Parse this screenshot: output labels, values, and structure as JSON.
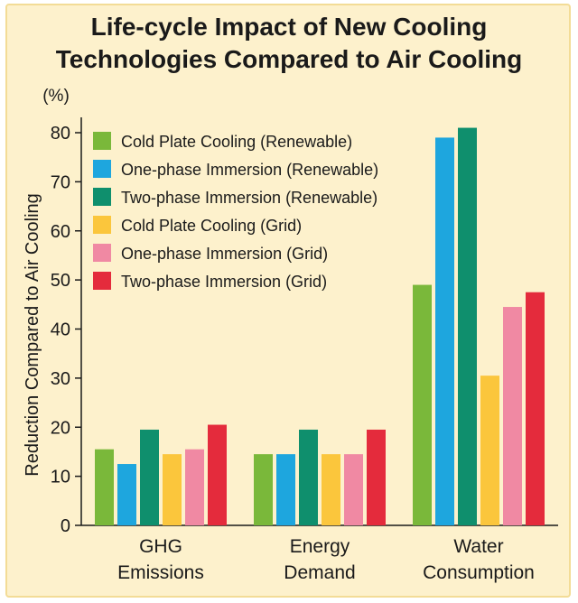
{
  "chart_data": {
    "type": "bar",
    "title": [
      "Life-cycle Impact of New Cooling",
      "Technologies Compared to Air Cooling"
    ],
    "ylabel": "Reduction Compared to Air Cooling",
    "yunit": "(%)",
    "ylim": [
      0,
      80
    ],
    "yticks": [
      0,
      10,
      20,
      30,
      40,
      50,
      60,
      70,
      80
    ],
    "grid": false,
    "legend_position": "top-left",
    "categories": [
      [
        "GHG",
        "Emissions"
      ],
      [
        "Energy",
        "Demand"
      ],
      [
        "Water",
        "Consumption"
      ]
    ],
    "series": [
      {
        "name": "Cold Plate Cooling (Renewable)",
        "color": "#7ab83a",
        "values": [
          15.5,
          14.5,
          49
        ]
      },
      {
        "name": "One-phase Immersion (Renewable)",
        "color": "#1ea6de",
        "values": [
          12.5,
          14.5,
          79
        ]
      },
      {
        "name": "Two-phase Immersion (Renewable)",
        "color": "#0f8f6d",
        "values": [
          19.5,
          19.5,
          81
        ]
      },
      {
        "name": "Cold Plate Cooling (Grid)",
        "color": "#fbc63c",
        "values": [
          14.5,
          14.5,
          30.5
        ]
      },
      {
        "name": "One-phase Immersion (Grid)",
        "color": "#f089a3",
        "values": [
          15.5,
          14.5,
          44.5
        ]
      },
      {
        "name": "Two-phase Immersion (Grid)",
        "color": "#e42b3c",
        "values": [
          20.5,
          19.5,
          47.5
        ]
      }
    ]
  }
}
